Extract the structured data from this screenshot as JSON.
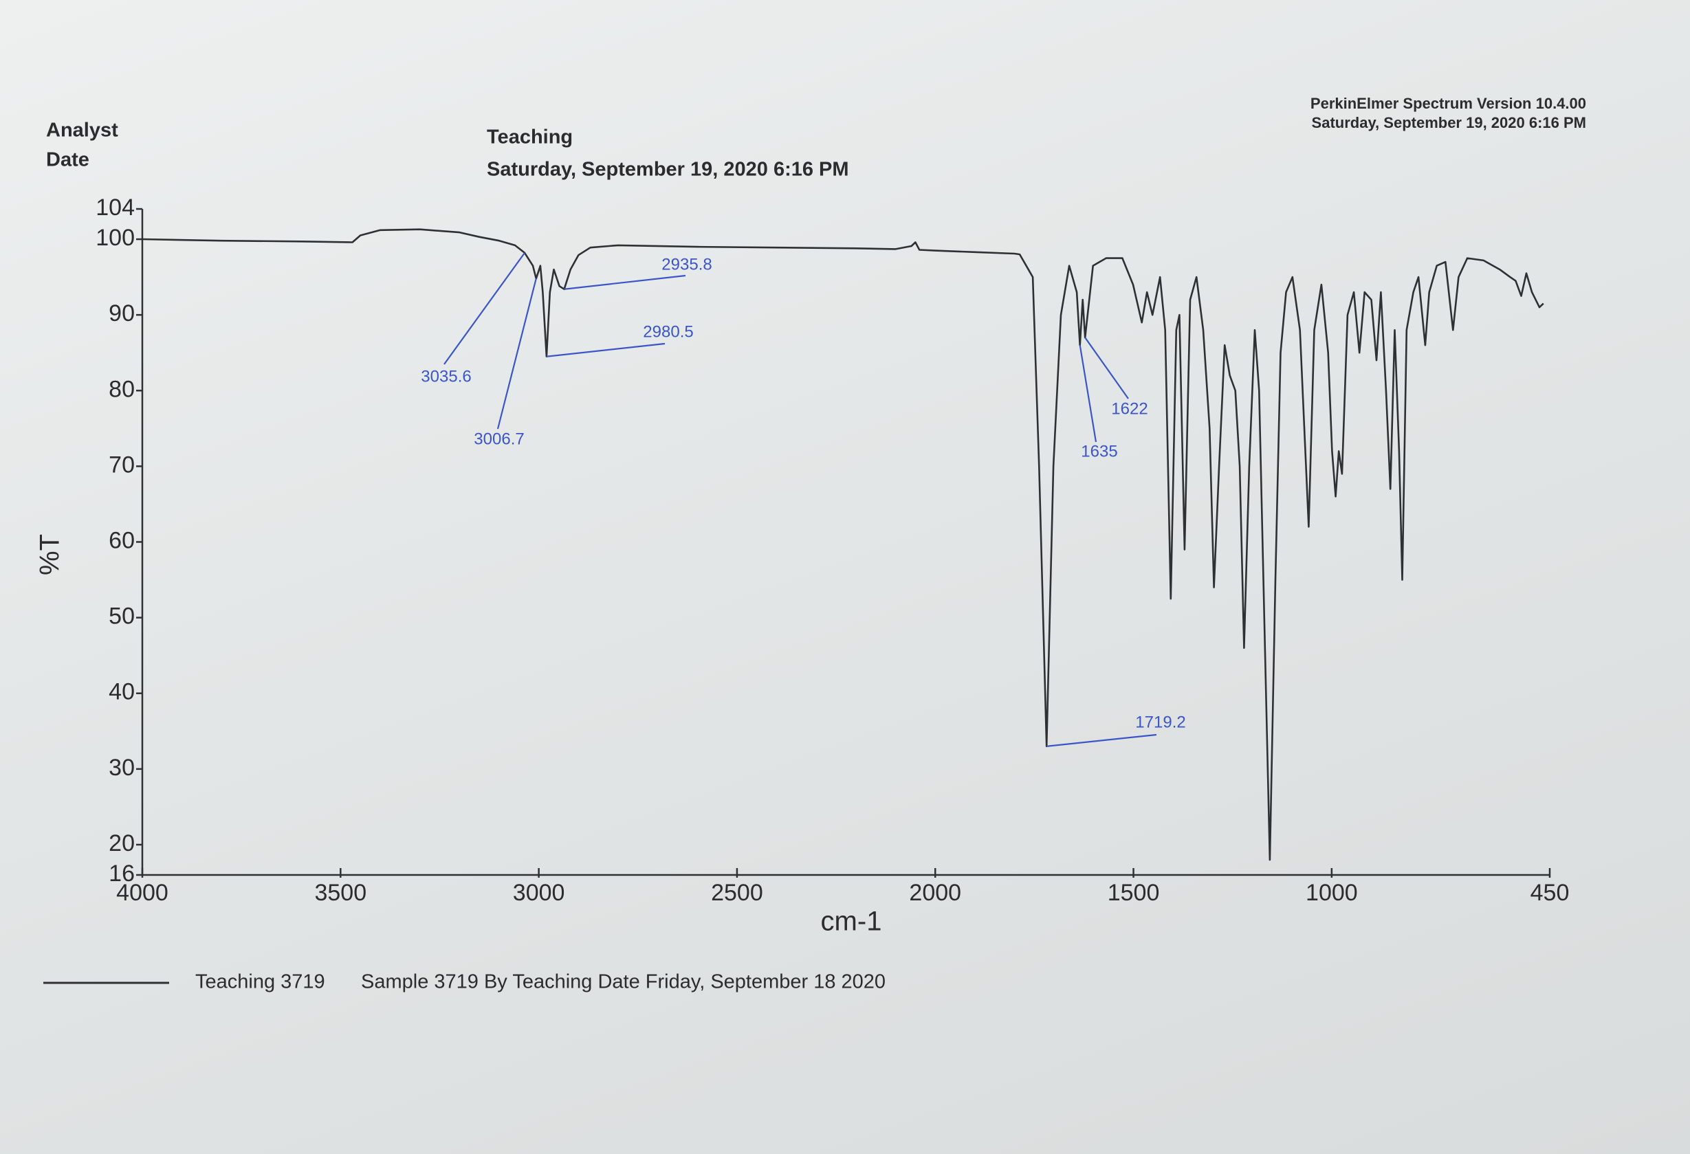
{
  "header": {
    "analyst_label": "Analyst",
    "date_label": "Date",
    "analyst": "Teaching",
    "date": "Saturday, September 19, 2020 6:16 PM",
    "software": "PerkinElmer Spectrum Version 10.4.00",
    "print_date": "Saturday, September 19, 2020 6:16 PM"
  },
  "chart_data": {
    "type": "line",
    "xlabel": "cm-1",
    "ylabel": "%T",
    "xlim": [
      4000,
      450
    ],
    "xticks": [
      4000,
      3500,
      3000,
      2500,
      2000,
      1500,
      1000,
      450
    ],
    "ylim": [
      16,
      104
    ],
    "yticks": [
      16,
      20,
      30,
      40,
      50,
      60,
      70,
      80,
      90,
      100,
      104
    ],
    "grid": false,
    "legend_description": "Sample 3719 By Teaching Date Friday, September 18 2020",
    "annotation_color": "#3a55c8",
    "x": [
      4000,
      3800,
      3600,
      3470,
      3450,
      3400,
      3300,
      3200,
      3150,
      3100,
      3060,
      3035.6,
      3015,
      3006.7,
      2996,
      2990,
      2980.5,
      2972,
      2962,
      2948,
      2935.8,
      2920,
      2900,
      2870,
      2800,
      2600,
      2400,
      2200,
      2100,
      2060,
      2050,
      2040,
      2000,
      1900,
      1800,
      1787,
      1754,
      1738,
      1719.2,
      1702,
      1683,
      1662,
      1643,
      1635,
      1628,
      1622,
      1602,
      1569,
      1528,
      1501,
      1479,
      1466,
      1452,
      1433,
      1420,
      1406,
      1392,
      1384,
      1371,
      1357,
      1341,
      1324,
      1308,
      1297,
      1284,
      1270,
      1257,
      1243,
      1232,
      1221,
      1208,
      1194,
      1183,
      1170,
      1156,
      1142,
      1129,
      1115,
      1099,
      1080,
      1058,
      1044,
      1026,
      1009,
      999,
      990,
      982,
      974,
      960,
      944,
      930,
      917,
      900,
      887,
      876,
      863,
      852,
      841,
      830,
      822,
      811,
      794,
      781,
      764,
      754,
      735,
      713,
      694,
      680,
      658,
      617,
      576,
      550,
      536,
      522,
      509,
      495,
      476,
      466
    ],
    "series": [
      {
        "name": "Teaching 3719",
        "color": "#2e3133",
        "values": [
          100,
          99.8,
          99.7,
          99.6,
          100.5,
          101.2,
          101.3,
          100.9,
          100.3,
          99.8,
          99.2,
          98.2,
          96.5,
          94.8,
          96.5,
          93,
          84.5,
          93,
          96,
          93.8,
          93.4,
          96,
          97.9,
          98.9,
          99.2,
          99,
          98.9,
          98.8,
          98.7,
          99.1,
          99.6,
          98.6,
          98.5,
          98.3,
          98.1,
          98,
          95,
          70,
          33,
          70,
          90,
          96.5,
          93,
          86,
          92,
          87,
          96.5,
          97.5,
          97.5,
          94,
          89,
          93,
          90,
          95,
          88,
          52.5,
          88,
          90,
          59,
          92,
          95,
          88,
          75,
          54,
          70,
          86,
          82,
          80,
          70,
          46,
          70,
          88,
          80,
          50,
          18,
          55,
          85,
          93,
          95,
          88,
          62,
          88,
          94,
          85,
          72,
          66,
          72,
          69,
          90,
          93,
          85,
          93,
          92,
          84,
          93,
          80,
          67,
          88,
          72,
          55,
          88,
          93,
          95,
          86,
          93,
          96.5,
          97,
          88,
          95,
          97.5,
          97.2,
          96,
          95,
          94.5,
          92.5,
          95.5,
          93,
          91,
          91.5
        ]
      }
    ],
    "annotations": [
      {
        "x": 3035.6,
        "y": 98.2
      },
      {
        "x": 3006.7,
        "y": 94.8
      },
      {
        "x": 2980.5,
        "y": 84.5
      },
      {
        "x": 2935.8,
        "y": 93.4
      },
      {
        "x": 1719.2,
        "y": 33
      },
      {
        "x": 1635,
        "y": 86
      },
      {
        "x": 1622,
        "y": 87
      }
    ]
  }
}
